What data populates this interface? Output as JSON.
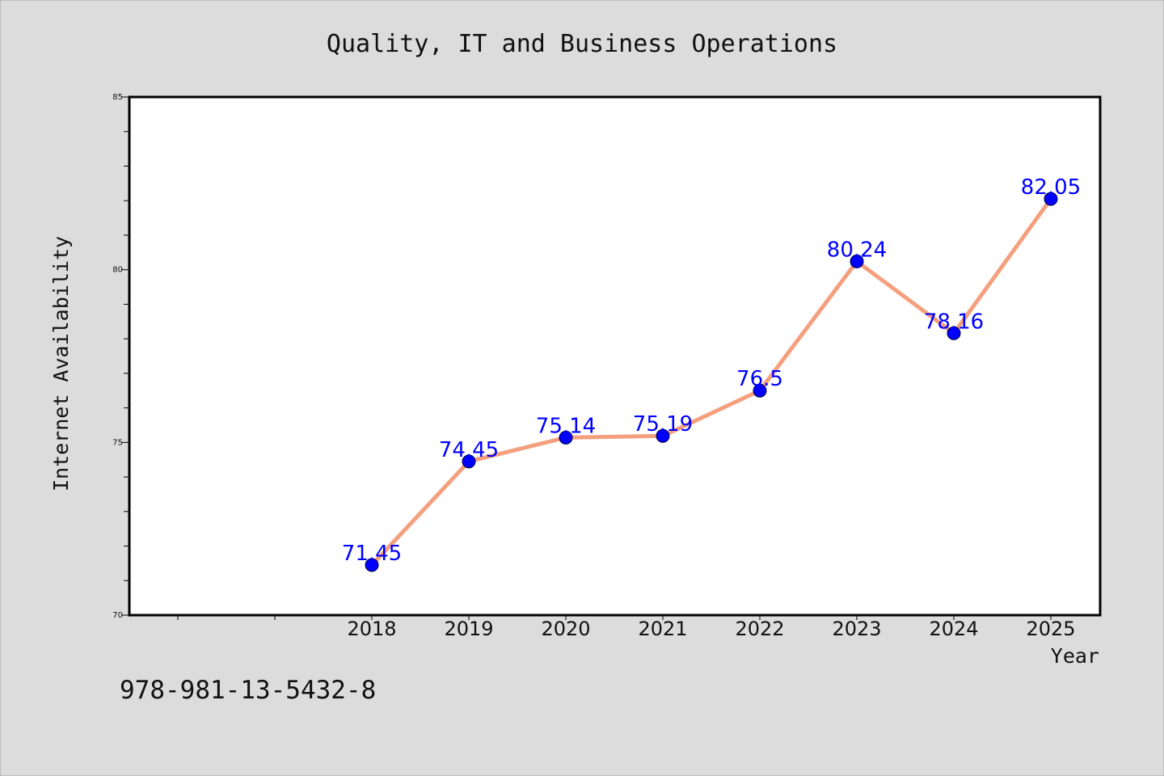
{
  "chart_data": {
    "type": "line",
    "title": "Quality, IT and Business Operations",
    "xlabel": "Year",
    "ylabel": "Internet Availability",
    "x": [
      "2018",
      "2019",
      "2020",
      "2021",
      "2022",
      "2023",
      "2024",
      "2025"
    ],
    "series": [
      {
        "values": [
          71.45,
          74.45,
          75.14,
          75.19,
          76.5,
          80.24,
          78.16,
          82.05
        ],
        "data_labels": [
          "71.45",
          "74.45",
          "75.14",
          "75.19",
          "76.5",
          "80.24",
          "78.16",
          "82.05"
        ],
        "line_color": "#f4a07e",
        "marker_color": "#0000ff",
        "label_color": "#0000ff"
      }
    ],
    "ylim": [
      70,
      85
    ],
    "yticks": [
      "70",
      "75",
      "80",
      "85"
    ],
    "grid": false,
    "legend": "none"
  },
  "footer": {
    "text": "978-981-13-5432-8"
  },
  "colors": {
    "background": "#dcdcdc",
    "plot_background": "#ffffff",
    "axis": "#000000"
  }
}
